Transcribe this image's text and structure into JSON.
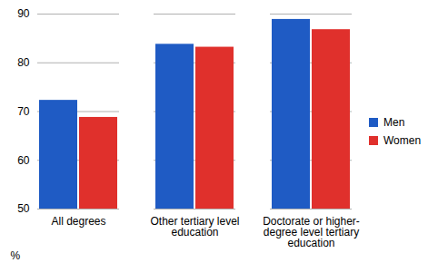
{
  "chart_data": {
    "type": "bar",
    "categories": [
      "All degrees",
      "Other tertiary level education",
      "Doctorate or higher-degree level tertiary education"
    ],
    "series": [
      {
        "name": "Men",
        "color": "#1f5bc4",
        "values": [
          72.3,
          83.8,
          88.9
        ]
      },
      {
        "name": "Women",
        "color": "#e0302c",
        "values": [
          68.8,
          83.2,
          86.8
        ]
      }
    ],
    "ylabel": "%",
    "ylim": [
      50,
      90
    ],
    "yticks": [
      50,
      60,
      70,
      80,
      90
    ],
    "grid": true,
    "legend": "right"
  }
}
